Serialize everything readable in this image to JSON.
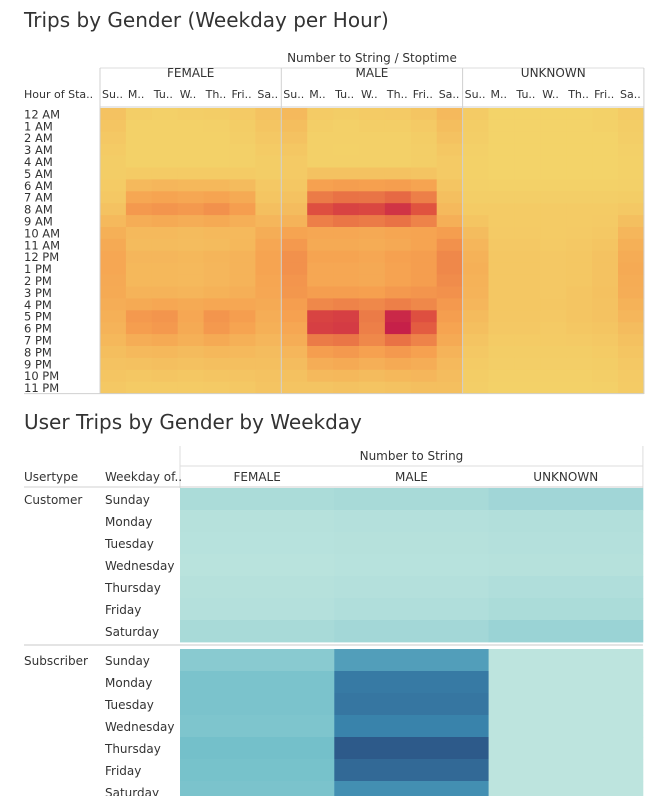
{
  "chart_data": [
    {
      "type": "heatmap",
      "title": "Trips by Gender (Weekday per Hour)",
      "column_group_label": "Number to String / Stoptime",
      "row_header": "Hour of Sta..",
      "groups": [
        "FEMALE",
        "MALE",
        "UNKNOWN"
      ],
      "day_labels": [
        "Su..",
        "M..",
        "Tu..",
        "W..",
        "Th..",
        "Fri..",
        "Sa.."
      ],
      "hours": [
        "12 AM",
        "1 AM",
        "2 AM",
        "3 AM",
        "4 AM",
        "5 AM",
        "6 AM",
        "7 AM",
        "8 AM",
        "9 AM",
        "10 AM",
        "11 AM",
        "12 PM",
        "1 PM",
        "2 PM",
        "3 PM",
        "4 PM",
        "5 PM",
        "6 PM",
        "7 PM",
        "8 PM",
        "9 PM",
        "10 PM",
        "11 PM"
      ],
      "color_low": "#f3d46a",
      "color_high": "#c2184b",
      "values": {
        "FEMALE": [
          [
            0.12,
            0.04,
            0.03,
            0.04,
            0.05,
            0.07,
            0.12
          ],
          [
            0.1,
            0.02,
            0.02,
            0.02,
            0.03,
            0.05,
            0.1
          ],
          [
            0.08,
            0.02,
            0.02,
            0.02,
            0.02,
            0.04,
            0.08
          ],
          [
            0.06,
            0.02,
            0.02,
            0.02,
            0.02,
            0.03,
            0.06
          ],
          [
            0.05,
            0.02,
            0.02,
            0.02,
            0.02,
            0.03,
            0.05
          ],
          [
            0.05,
            0.06,
            0.06,
            0.06,
            0.06,
            0.06,
            0.05
          ],
          [
            0.06,
            0.18,
            0.2,
            0.19,
            0.19,
            0.17,
            0.08
          ],
          [
            0.08,
            0.3,
            0.32,
            0.3,
            0.32,
            0.28,
            0.1
          ],
          [
            0.12,
            0.38,
            0.4,
            0.38,
            0.42,
            0.36,
            0.14
          ],
          [
            0.18,
            0.26,
            0.28,
            0.26,
            0.28,
            0.25,
            0.2
          ],
          [
            0.24,
            0.18,
            0.18,
            0.17,
            0.18,
            0.18,
            0.26
          ],
          [
            0.28,
            0.17,
            0.17,
            0.16,
            0.17,
            0.19,
            0.3
          ],
          [
            0.3,
            0.2,
            0.2,
            0.19,
            0.21,
            0.22,
            0.32
          ],
          [
            0.3,
            0.19,
            0.19,
            0.18,
            0.2,
            0.22,
            0.32
          ],
          [
            0.29,
            0.19,
            0.19,
            0.18,
            0.2,
            0.22,
            0.31
          ],
          [
            0.28,
            0.22,
            0.22,
            0.21,
            0.23,
            0.25,
            0.3
          ],
          [
            0.26,
            0.28,
            0.3,
            0.28,
            0.3,
            0.3,
            0.28
          ],
          [
            0.24,
            0.38,
            0.4,
            0.3,
            0.4,
            0.36,
            0.26
          ],
          [
            0.22,
            0.36,
            0.38,
            0.28,
            0.38,
            0.32,
            0.24
          ],
          [
            0.19,
            0.26,
            0.28,
            0.24,
            0.28,
            0.24,
            0.2
          ],
          [
            0.15,
            0.18,
            0.19,
            0.17,
            0.19,
            0.18,
            0.16
          ],
          [
            0.12,
            0.13,
            0.14,
            0.13,
            0.14,
            0.14,
            0.14
          ],
          [
            0.1,
            0.09,
            0.1,
            0.09,
            0.1,
            0.11,
            0.12
          ],
          [
            0.08,
            0.06,
            0.06,
            0.06,
            0.07,
            0.08,
            0.11
          ]
        ],
        "MALE": [
          [
            0.18,
            0.06,
            0.05,
            0.06,
            0.07,
            0.1,
            0.18
          ],
          [
            0.15,
            0.04,
            0.03,
            0.04,
            0.04,
            0.07,
            0.15
          ],
          [
            0.12,
            0.03,
            0.03,
            0.03,
            0.03,
            0.05,
            0.12
          ],
          [
            0.09,
            0.03,
            0.02,
            0.03,
            0.03,
            0.04,
            0.09
          ],
          [
            0.07,
            0.03,
            0.03,
            0.03,
            0.03,
            0.04,
            0.07
          ],
          [
            0.07,
            0.12,
            0.12,
            0.12,
            0.12,
            0.11,
            0.07
          ],
          [
            0.09,
            0.34,
            0.36,
            0.35,
            0.36,
            0.32,
            0.1
          ],
          [
            0.12,
            0.52,
            0.56,
            0.55,
            0.6,
            0.5,
            0.14
          ],
          [
            0.16,
            0.72,
            0.78,
            0.76,
            0.86,
            0.7,
            0.18
          ],
          [
            0.22,
            0.5,
            0.54,
            0.52,
            0.56,
            0.48,
            0.25
          ],
          [
            0.32,
            0.3,
            0.3,
            0.29,
            0.31,
            0.32,
            0.36
          ],
          [
            0.38,
            0.28,
            0.28,
            0.27,
            0.29,
            0.32,
            0.42
          ],
          [
            0.42,
            0.32,
            0.32,
            0.3,
            0.34,
            0.36,
            0.46
          ],
          [
            0.42,
            0.3,
            0.3,
            0.29,
            0.33,
            0.36,
            0.46
          ],
          [
            0.4,
            0.3,
            0.3,
            0.29,
            0.33,
            0.36,
            0.44
          ],
          [
            0.39,
            0.36,
            0.36,
            0.35,
            0.38,
            0.4,
            0.42
          ],
          [
            0.36,
            0.46,
            0.48,
            0.46,
            0.5,
            0.46,
            0.38
          ],
          [
            0.34,
            0.78,
            0.8,
            0.52,
            0.92,
            0.72,
            0.36
          ],
          [
            0.3,
            0.8,
            0.82,
            0.5,
            0.96,
            0.66,
            0.32
          ],
          [
            0.26,
            0.52,
            0.54,
            0.46,
            0.56,
            0.48,
            0.28
          ],
          [
            0.2,
            0.36,
            0.38,
            0.34,
            0.38,
            0.34,
            0.22
          ],
          [
            0.16,
            0.26,
            0.28,
            0.25,
            0.28,
            0.26,
            0.18
          ],
          [
            0.13,
            0.18,
            0.19,
            0.17,
            0.19,
            0.2,
            0.16
          ],
          [
            0.11,
            0.11,
            0.12,
            0.11,
            0.12,
            0.14,
            0.14
          ]
        ],
        "UNKNOWN": [
          [
            0.06,
            0.01,
            0.01,
            0.01,
            0.01,
            0.02,
            0.06
          ],
          [
            0.05,
            0.01,
            0.01,
            0.01,
            0.01,
            0.02,
            0.05
          ],
          [
            0.04,
            0.01,
            0.01,
            0.01,
            0.01,
            0.01,
            0.04
          ],
          [
            0.03,
            0.01,
            0.01,
            0.01,
            0.01,
            0.01,
            0.03
          ],
          [
            0.02,
            0.01,
            0.01,
            0.01,
            0.01,
            0.01,
            0.02
          ],
          [
            0.02,
            0.01,
            0.01,
            0.01,
            0.01,
            0.01,
            0.02
          ],
          [
            0.03,
            0.02,
            0.02,
            0.02,
            0.02,
            0.02,
            0.03
          ],
          [
            0.04,
            0.04,
            0.04,
            0.04,
            0.04,
            0.04,
            0.05
          ],
          [
            0.06,
            0.06,
            0.06,
            0.06,
            0.06,
            0.06,
            0.08
          ],
          [
            0.1,
            0.06,
            0.06,
            0.06,
            0.06,
            0.07,
            0.14
          ],
          [
            0.16,
            0.07,
            0.07,
            0.06,
            0.07,
            0.08,
            0.2
          ],
          [
            0.2,
            0.08,
            0.08,
            0.07,
            0.08,
            0.1,
            0.24
          ],
          [
            0.23,
            0.09,
            0.09,
            0.08,
            0.09,
            0.12,
            0.27
          ],
          [
            0.24,
            0.09,
            0.09,
            0.08,
            0.09,
            0.12,
            0.28
          ],
          [
            0.23,
            0.09,
            0.09,
            0.08,
            0.09,
            0.12,
            0.27
          ],
          [
            0.22,
            0.09,
            0.09,
            0.08,
            0.1,
            0.13,
            0.26
          ],
          [
            0.2,
            0.09,
            0.09,
            0.09,
            0.1,
            0.12,
            0.23
          ],
          [
            0.17,
            0.09,
            0.09,
            0.08,
            0.1,
            0.12,
            0.2
          ],
          [
            0.14,
            0.08,
            0.08,
            0.07,
            0.09,
            0.1,
            0.16
          ],
          [
            0.11,
            0.06,
            0.06,
            0.06,
            0.07,
            0.08,
            0.13
          ],
          [
            0.08,
            0.05,
            0.05,
            0.05,
            0.05,
            0.06,
            0.1
          ],
          [
            0.06,
            0.04,
            0.04,
            0.04,
            0.04,
            0.05,
            0.08
          ],
          [
            0.05,
            0.03,
            0.03,
            0.03,
            0.03,
            0.04,
            0.07
          ],
          [
            0.04,
            0.02,
            0.02,
            0.02,
            0.02,
            0.03,
            0.06
          ]
        ]
      }
    },
    {
      "type": "heatmap",
      "title": "User Trips by Gender by Weekday",
      "column_group_label": "Number to String",
      "usertype_header": "Usertype",
      "weekday_header": "Weekday of..",
      "groups": [
        "FEMALE",
        "MALE",
        "UNKNOWN"
      ],
      "usertypes": [
        "Customer",
        "Subscriber"
      ],
      "weekdays": [
        "Sunday",
        "Monday",
        "Tuesday",
        "Wednesday",
        "Thursday",
        "Friday",
        "Saturday"
      ],
      "color_low": "#c0e6df",
      "color_high": "#2a4f81",
      "values": {
        "Customer": [
          [
            0.12,
            0.14,
            0.18
          ],
          [
            0.06,
            0.07,
            0.08
          ],
          [
            0.05,
            0.06,
            0.07
          ],
          [
            0.04,
            0.05,
            0.06
          ],
          [
            0.06,
            0.07,
            0.09
          ],
          [
            0.07,
            0.09,
            0.12
          ],
          [
            0.14,
            0.17,
            0.22
          ]
        ],
        "Subscriber": [
          [
            0.32,
            0.62,
            0.02
          ],
          [
            0.4,
            0.8,
            0.02
          ],
          [
            0.4,
            0.82,
            0.02
          ],
          [
            0.38,
            0.76,
            0.02
          ],
          [
            0.44,
            0.95,
            0.02
          ],
          [
            0.42,
            0.88,
            0.02
          ],
          [
            0.4,
            0.7,
            0.02
          ]
        ]
      }
    }
  ]
}
